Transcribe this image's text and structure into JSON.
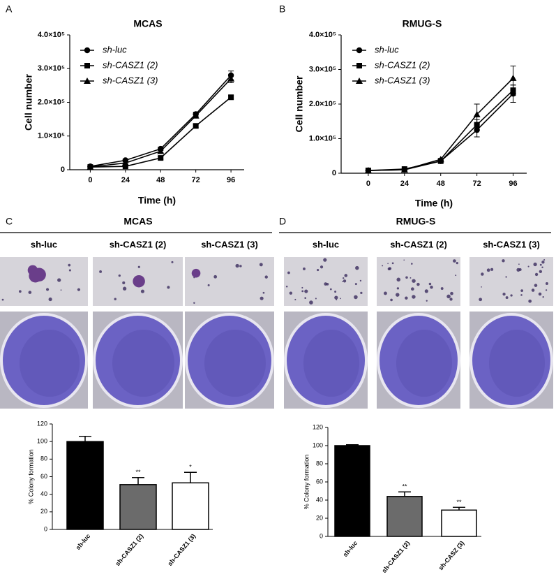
{
  "chart_data": [
    {
      "type": "line",
      "panel": "A",
      "title": "MCAS",
      "xlabel": "Time (h)",
      "ylabel": "Cell number",
      "x": [
        0,
        24,
        48,
        72,
        96
      ],
      "xlim": [
        -14,
        105
      ],
      "xticks": [
        0,
        24,
        48,
        72,
        96
      ],
      "ylim": [
        0,
        400000
      ],
      "yticks": [
        0,
        {
          "value": 100000,
          "label": "1.0×10⁵"
        },
        {
          "value": 200000,
          "label": "2.0×10⁵"
        },
        {
          "value": 300000,
          "label": "3.0×10⁵"
        },
        {
          "value": 400000,
          "label": "4.0×10⁵"
        }
      ],
      "series": [
        {
          "name": "sh-luc",
          "marker": "circle",
          "color": "#000000",
          "values": [
            10000,
            28000,
            62000,
            165000,
            280000
          ],
          "errors": [
            2000,
            3000,
            5000,
            6000,
            13000
          ]
        },
        {
          "name": "sh-CASZ1 (2)",
          "marker": "square",
          "color": "#000000",
          "values": [
            8000,
            10000,
            35000,
            130000,
            215000
          ],
          "errors": [
            1000,
            2000,
            4000,
            5000,
            5000
          ]
        },
        {
          "name": "sh-CASZ1 (3)",
          "marker": "triangle",
          "color": "#000000",
          "values": [
            8000,
            20000,
            55000,
            160000,
            270000
          ],
          "errors": [
            1000,
            3000,
            4000,
            5000,
            12000
          ]
        }
      ]
    },
    {
      "type": "line",
      "panel": "B",
      "title": "RMUG-S",
      "xlabel": "Time (h)",
      "ylabel": "Cell number",
      "x": [
        0,
        24,
        48,
        72,
        96
      ],
      "xlim": [
        -18,
        105
      ],
      "xticks": [
        0,
        24,
        48,
        72,
        96
      ],
      "ylim": [
        0,
        400000
      ],
      "yticks": [
        0,
        {
          "value": 100000,
          "label": "1.0×10⁵"
        },
        {
          "value": 200000,
          "label": "2.0×10⁵"
        },
        {
          "value": 300000,
          "label": "3.0×10⁵"
        },
        {
          "value": 400000,
          "label": "4.0×10⁵"
        }
      ],
      "series": [
        {
          "name": "sh-luc",
          "marker": "circle",
          "color": "#000000",
          "values": [
            8000,
            10000,
            35000,
            125000,
            230000
          ],
          "errors": [
            1000,
            2000,
            3000,
            20000,
            25000
          ]
        },
        {
          "name": "sh-CASZ1 (2)",
          "marker": "square",
          "color": "#000000",
          "values": [
            8000,
            12000,
            35000,
            140000,
            240000
          ],
          "errors": [
            1000,
            2000,
            3000,
            15000,
            15000
          ]
        },
        {
          "name": "sh-CASZ1 (3)",
          "marker": "triangle",
          "color": "#000000",
          "values": [
            8000,
            10000,
            40000,
            170000,
            275000
          ],
          "errors": [
            1000,
            2000,
            3000,
            30000,
            35000
          ]
        }
      ]
    },
    {
      "type": "bar",
      "ylabel": "% Colony formation",
      "categories": [
        "sh-luc",
        "sh-CASZ1 (2)",
        "sh-CASZ1 (3)"
      ],
      "values": [
        100,
        51,
        53
      ],
      "errors": [
        6,
        8,
        12
      ],
      "colors": [
        "#000000",
        "#6b6b6b",
        "#ffffff"
      ],
      "annotations": [
        null,
        "**",
        "*"
      ],
      "ylim": [
        0,
        120
      ],
      "yticks": [
        0,
        20,
        40,
        60,
        80,
        100,
        120
      ]
    },
    {
      "type": "bar",
      "ylabel": "% Colony formation",
      "categories": [
        "sh-luc",
        "sh-CASZ1 (2)",
        "sh-CASZ (3)"
      ],
      "values": [
        100,
        44,
        29
      ],
      "errors": [
        1,
        5,
        3
      ],
      "colors": [
        "#000000",
        "#6b6b6b",
        "#ffffff"
      ],
      "annotations": [
        null,
        "**",
        "**"
      ],
      "ylim": [
        0,
        120
      ],
      "yticks": [
        0,
        20,
        40,
        60,
        80,
        100,
        120
      ]
    }
  ],
  "image_panels": [
    {
      "label": "C",
      "title": "MCAS",
      "columns": [
        "sh-luc",
        "sh-CASZ1 (2)",
        "sh-CASZ1 (3)"
      ]
    },
    {
      "label": "D",
      "title": "RMUG-S",
      "columns": [
        "sh-luc",
        "sh-CASZ1 (2)",
        "sh-CASZ1 (3)"
      ]
    }
  ]
}
